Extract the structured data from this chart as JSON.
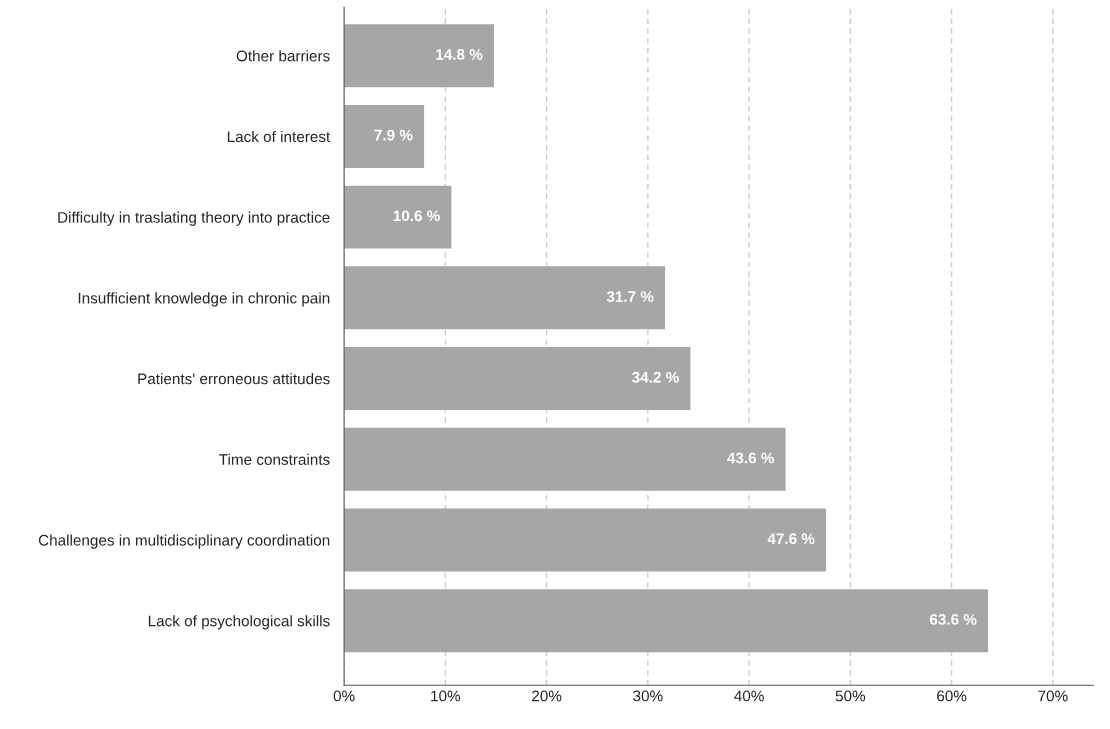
{
  "chart_data": {
    "type": "bar",
    "orientation": "horizontal",
    "categories": [
      "Other barriers",
      "Lack of interest",
      "Difficulty in traslating theory into practice",
      "Insufficient knowledge in chronic pain",
      "Patients' erroneous attitudes",
      "Time constraints",
      "Challenges in multidisciplinary coordination",
      "Lack of psychological skills"
    ],
    "values": [
      14.8,
      7.9,
      10.6,
      31.7,
      34.2,
      43.6,
      47.6,
      63.6
    ],
    "value_labels": [
      "14.8 %",
      "7.9 %",
      "10.6 %",
      "31.7 %",
      "34.2 %",
      "43.6 %",
      "47.6 %",
      "63.6 %"
    ],
    "color": "#a6a6a6",
    "xlim": [
      0,
      74
    ],
    "xticks": [
      {
        "value": 0,
        "label": "0%"
      },
      {
        "value": 10,
        "label": "10%"
      },
      {
        "value": 20,
        "label": "20%"
      },
      {
        "value": 30,
        "label": "30%"
      },
      {
        "value": 40,
        "label": "40%"
      },
      {
        "value": 50,
        "label": "50%"
      },
      {
        "value": 60,
        "label": "60%"
      },
      {
        "value": 70,
        "label": "70%"
      }
    ],
    "grid": "x"
  }
}
